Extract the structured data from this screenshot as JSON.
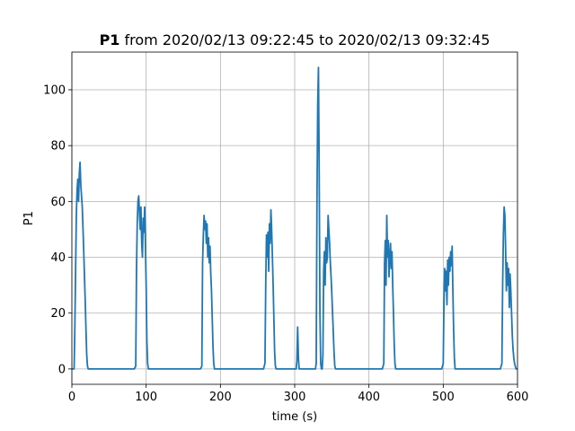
{
  "chart_data": {
    "type": "line",
    "title_bold": "P1",
    "title_rest": " from 2020/02/13 09:22:45 to 2020/02/13 09:32:45",
    "xlabel": "time (s)",
    "ylabel": "P1",
    "xlim": [
      0,
      600
    ],
    "ylim": [
      -5.5,
      113.5
    ],
    "x_ticks": [
      0,
      100,
      200,
      300,
      400,
      500,
      600
    ],
    "y_ticks": [
      0,
      20,
      40,
      60,
      80,
      100
    ],
    "grid": true,
    "line_color": "#1f77b4",
    "series": [
      {
        "points": [
          [
            0,
            0
          ],
          [
            3,
            0
          ],
          [
            4,
            15
          ],
          [
            5,
            35
          ],
          [
            6,
            55
          ],
          [
            7,
            64
          ],
          [
            8,
            68
          ],
          [
            9,
            60
          ],
          [
            10,
            70
          ],
          [
            11,
            74
          ],
          [
            12,
            66
          ],
          [
            13,
            62
          ],
          [
            14,
            58
          ],
          [
            15,
            50
          ],
          [
            16,
            42
          ],
          [
            17,
            33
          ],
          [
            18,
            24
          ],
          [
            19,
            14
          ],
          [
            20,
            5
          ],
          [
            21,
            1
          ],
          [
            22,
            0
          ],
          [
            84,
            0
          ],
          [
            86,
            1
          ],
          [
            87,
            35
          ],
          [
            88,
            52
          ],
          [
            89,
            60
          ],
          [
            90,
            62
          ],
          [
            91,
            56
          ],
          [
            92,
            50
          ],
          [
            93,
            58
          ],
          [
            94,
            45
          ],
          [
            95,
            40
          ],
          [
            96,
            54
          ],
          [
            97,
            49
          ],
          [
            98,
            58
          ],
          [
            99,
            45
          ],
          [
            100,
            30
          ],
          [
            101,
            10
          ],
          [
            102,
            2
          ],
          [
            103,
            0
          ],
          [
            173,
            0
          ],
          [
            175,
            1
          ],
          [
            176,
            38
          ],
          [
            177,
            48
          ],
          [
            178,
            55
          ],
          [
            179,
            50
          ],
          [
            180,
            53
          ],
          [
            181,
            45
          ],
          [
            182,
            52
          ],
          [
            183,
            40
          ],
          [
            184,
            47
          ],
          [
            185,
            38
          ],
          [
            186,
            44
          ],
          [
            187,
            34
          ],
          [
            188,
            28
          ],
          [
            189,
            18
          ],
          [
            190,
            8
          ],
          [
            191,
            2
          ],
          [
            192,
            0
          ],
          [
            258,
            0
          ],
          [
            260,
            2
          ],
          [
            261,
            30
          ],
          [
            262,
            48
          ],
          [
            263,
            40
          ],
          [
            264,
            49
          ],
          [
            265,
            35
          ],
          [
            266,
            52
          ],
          [
            267,
            45
          ],
          [
            268,
            57
          ],
          [
            269,
            50
          ],
          [
            270,
            40
          ],
          [
            271,
            30
          ],
          [
            272,
            18
          ],
          [
            273,
            6
          ],
          [
            274,
            1
          ],
          [
            275,
            0
          ],
          [
            302,
            0
          ],
          [
            303,
            3
          ],
          [
            304,
            15
          ],
          [
            305,
            4
          ],
          [
            306,
            0
          ],
          [
            328,
            0
          ],
          [
            329,
            2
          ],
          [
            330,
            60
          ],
          [
            331,
            95
          ],
          [
            332,
            108
          ],
          [
            333,
            70
          ],
          [
            334,
            20
          ],
          [
            335,
            2
          ],
          [
            336,
            0
          ],
          [
            337,
            0
          ],
          [
            338,
            5
          ],
          [
            339,
            35
          ],
          [
            340,
            42
          ],
          [
            341,
            30
          ],
          [
            342,
            47
          ],
          [
            343,
            38
          ],
          [
            344,
            40
          ],
          [
            345,
            55
          ],
          [
            346,
            50
          ],
          [
            347,
            45
          ],
          [
            348,
            38
          ],
          [
            349,
            33
          ],
          [
            350,
            27
          ],
          [
            351,
            20
          ],
          [
            352,
            13
          ],
          [
            353,
            6
          ],
          [
            354,
            1
          ],
          [
            355,
            0
          ],
          [
            418,
            0
          ],
          [
            420,
            2
          ],
          [
            421,
            38
          ],
          [
            422,
            46
          ],
          [
            423,
            30
          ],
          [
            424,
            55
          ],
          [
            425,
            40
          ],
          [
            426,
            46
          ],
          [
            427,
            33
          ],
          [
            428,
            40
          ],
          [
            429,
            45
          ],
          [
            430,
            36
          ],
          [
            431,
            42
          ],
          [
            432,
            30
          ],
          [
            433,
            20
          ],
          [
            434,
            9
          ],
          [
            435,
            2
          ],
          [
            436,
            0
          ],
          [
            498,
            0
          ],
          [
            500,
            2
          ],
          [
            501,
            24
          ],
          [
            502,
            36
          ],
          [
            503,
            28
          ],
          [
            504,
            35
          ],
          [
            505,
            23
          ],
          [
            506,
            39
          ],
          [
            507,
            30
          ],
          [
            508,
            40
          ],
          [
            509,
            35
          ],
          [
            510,
            42
          ],
          [
            511,
            37
          ],
          [
            512,
            44
          ],
          [
            513,
            28
          ],
          [
            514,
            14
          ],
          [
            515,
            4
          ],
          [
            516,
            0
          ],
          [
            577,
            0
          ],
          [
            579,
            2
          ],
          [
            580,
            30
          ],
          [
            581,
            48
          ],
          [
            582,
            58
          ],
          [
            583,
            55
          ],
          [
            584,
            43
          ],
          [
            585,
            28
          ],
          [
            586,
            38
          ],
          [
            587,
            30
          ],
          [
            588,
            36
          ],
          [
            589,
            22
          ],
          [
            590,
            34
          ],
          [
            591,
            28
          ],
          [
            592,
            20
          ],
          [
            593,
            12
          ],
          [
            594,
            7
          ],
          [
            595,
            4
          ],
          [
            596,
            2
          ],
          [
            598,
            0
          ],
          [
            600,
            0
          ]
        ]
      }
    ]
  }
}
